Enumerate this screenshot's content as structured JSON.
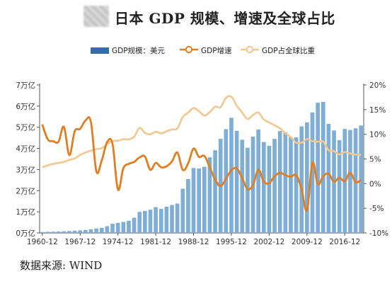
{
  "title": "日本 GDP 规模、增速及全球占比",
  "source": "数据来源:  WIND",
  "colors": {
    "bar": "#7eaed6",
    "growth": "#e07e22",
    "share": "#f3c78e"
  },
  "chart_data": {
    "type": "bar",
    "title": "日本 GDP 规模、增速及全球占比",
    "legend": [
      "GDP规模：美元",
      "GDP增速",
      "GDP占全球比重"
    ],
    "legend_placement": "top-center",
    "x_tick_labels": [
      "1960-12",
      "1967-12",
      "1974-12",
      "1981-12",
      "1988-12",
      "1995-12",
      "2002-12",
      "2009-12",
      "2016-12"
    ],
    "years": [
      1960,
      1961,
      1962,
      1963,
      1964,
      1965,
      1966,
      1967,
      1968,
      1969,
      1970,
      1971,
      1972,
      1973,
      1974,
      1975,
      1976,
      1977,
      1978,
      1979,
      1980,
      1981,
      1982,
      1983,
      1984,
      1985,
      1986,
      1987,
      1988,
      1989,
      1990,
      1991,
      1992,
      1993,
      1994,
      1995,
      1996,
      1997,
      1998,
      1999,
      2000,
      2001,
      2002,
      2003,
      2004,
      2005,
      2006,
      2007,
      2008,
      2009,
      2010,
      2011,
      2012,
      2013,
      2014,
      2015,
      2016,
      2017,
      2018,
      2019
    ],
    "y_left": {
      "ticks": [
        "0万亿",
        "1万亿",
        "2万亿",
        "3万亿",
        "4万亿",
        "5万亿",
        "6万亿",
        "7万亿"
      ],
      "min": 0,
      "max": 7,
      "unit": "万亿美元"
    },
    "y_right": {
      "ticks": [
        "-10%",
        "-5%",
        "0%",
        "5%",
        "10%",
        "15%",
        "20%"
      ],
      "min": -10,
      "max": 20,
      "unit": "%"
    },
    "series": [
      {
        "name": "GDP规模：美元",
        "type": "bar",
        "axis": "left",
        "values": [
          0.044,
          0.054,
          0.06,
          0.07,
          0.081,
          0.091,
          0.106,
          0.123,
          0.146,
          0.172,
          0.212,
          0.24,
          0.318,
          0.432,
          0.48,
          0.522,
          0.576,
          0.721,
          0.996,
          1.04,
          1.1,
          1.22,
          1.14,
          1.24,
          1.32,
          1.39,
          2.09,
          2.55,
          3.07,
          3.05,
          3.13,
          3.58,
          3.91,
          4.45,
          4.91,
          5.45,
          4.83,
          4.41,
          4.03,
          4.56,
          4.89,
          4.3,
          4.12,
          4.45,
          4.82,
          4.76,
          4.53,
          4.52,
          5.04,
          5.23,
          5.7,
          6.16,
          6.2,
          5.16,
          4.85,
          4.39,
          4.92,
          4.87,
          4.95,
          5.08
        ]
      },
      {
        "name": "GDP增速",
        "type": "line",
        "axis": "right",
        "values": [
          12.0,
          9.0,
          8.6,
          8.5,
          11.5,
          5.8,
          10.6,
          11.1,
          12.8,
          12.5,
          2.5,
          4.7,
          8.4,
          8.0,
          -1.2,
          3.1,
          4.0,
          4.4,
          5.3,
          5.5,
          2.8,
          4.2,
          3.3,
          3.5,
          4.5,
          6.3,
          2.8,
          4.1,
          7.1,
          5.4,
          5.6,
          3.3,
          0.8,
          -0.5,
          1.0,
          2.7,
          3.1,
          1.1,
          -1.1,
          -0.3,
          2.8,
          0.4,
          0.1,
          1.5,
          2.2,
          1.7,
          1.4,
          1.7,
          -1.1,
          -5.4,
          4.2,
          -0.1,
          1.5,
          2.0,
          0.4,
          1.2,
          0.5,
          2.2,
          0.3,
          0.7
        ]
      },
      {
        "name": "GDP占全球比重",
        "type": "line",
        "axis": "right",
        "values": [
          3.3,
          3.7,
          4.0,
          4.2,
          4.4,
          4.8,
          5.1,
          5.8,
          6.3,
          6.7,
          7.0,
          7.2,
          8.0,
          8.6,
          8.7,
          9.0,
          9.0,
          9.5,
          11.3,
          10.3,
          10.0,
          10.5,
          10.2,
          10.6,
          11.0,
          11.2,
          13.5,
          14.4,
          15.3,
          14.7,
          13.8,
          14.5,
          15.6,
          15.5,
          17.4,
          17.6,
          15.8,
          14.4,
          13.1,
          13.9,
          14.4,
          13.0,
          12.4,
          11.8,
          11.2,
          10.2,
          9.4,
          8.3,
          8.3,
          9.0,
          8.6,
          8.5,
          8.5,
          6.8,
          6.6,
          5.9,
          6.4,
          6.1,
          5.9,
          5.8
        ]
      }
    ]
  }
}
